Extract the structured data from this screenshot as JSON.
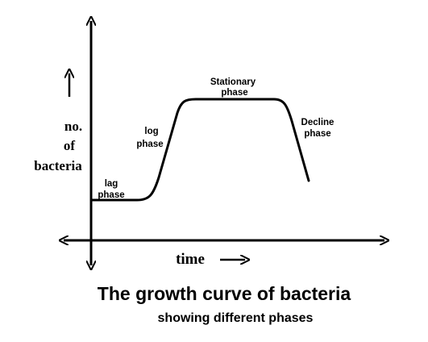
{
  "diagram": {
    "title": "The growth curve of bacteria",
    "subtitle": "showing different phases",
    "y_axis_label": {
      "line1": "no.",
      "line2": "of",
      "line3": "bacteria"
    },
    "x_axis_label": "time",
    "phases": {
      "lag": {
        "line1": "lag",
        "line2": "phase"
      },
      "log": {
        "line1": "log",
        "line2": "phase"
      },
      "stationary": {
        "line1": "Stationary",
        "line2": "phase"
      },
      "decline": {
        "line1": "Decline",
        "line2": "phase"
      }
    },
    "colors": {
      "ink": "#000000",
      "background": "#ffffff"
    }
  }
}
